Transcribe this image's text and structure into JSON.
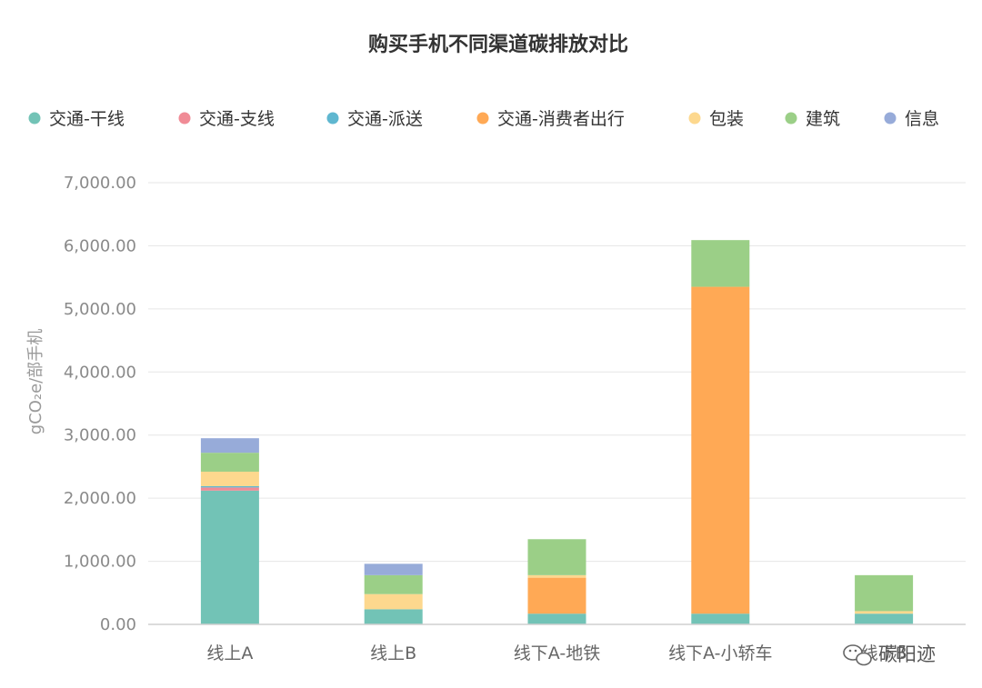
{
  "chart_data": {
    "type": "bar",
    "stacked": true,
    "title": "购买手机不同渠道碳排放对比",
    "ylabel": "gCO₂e/部手机",
    "xlabel": "",
    "ylim": [
      0,
      7000
    ],
    "yticks": [
      "0.00",
      "1,000.00",
      "2,000.00",
      "3,000.00",
      "4,000.00",
      "5,000.00",
      "6,000.00",
      "7,000.00"
    ],
    "categories": [
      "线上A",
      "线上B",
      "线下A-地铁",
      "线下A-小轿车",
      "线下B"
    ],
    "legend_position": "top",
    "grid": true,
    "series": [
      {
        "name": "交通-干线",
        "color": "#72c3b6",
        "values": [
          2120,
          240,
          170,
          170,
          170
        ]
      },
      {
        "name": "交通-支线",
        "color": "#f08b96",
        "values": [
          50,
          0,
          0,
          0,
          0
        ]
      },
      {
        "name": "交通-派送",
        "color": "#5fb7d0",
        "values": [
          20,
          0,
          0,
          0,
          0
        ]
      },
      {
        "name": "交通-消费者出行",
        "color": "#ffa955",
        "values": [
          0,
          0,
          570,
          5180,
          0
        ]
      },
      {
        "name": "包装",
        "color": "#fdd88e",
        "values": [
          230,
          240,
          40,
          0,
          40
        ]
      },
      {
        "name": "建筑",
        "color": "#9bcf87",
        "values": [
          300,
          300,
          570,
          740,
          570
        ]
      },
      {
        "name": "信息",
        "color": "#97abd9",
        "values": [
          230,
          180,
          0,
          0,
          0
        ]
      }
    ]
  },
  "watermark": {
    "text": "碳阳迹",
    "icon": "wechat-icon"
  }
}
